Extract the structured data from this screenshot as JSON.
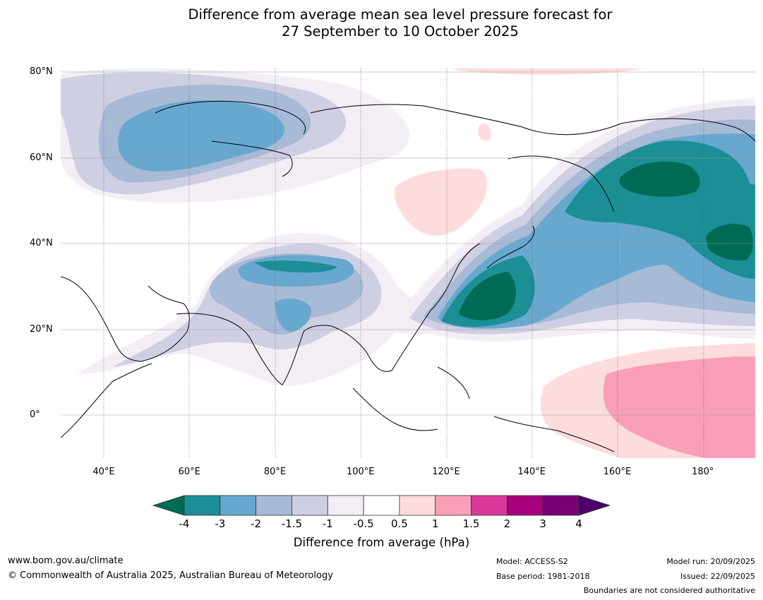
{
  "title_line1": "Difference from average mean sea level pressure forecast for",
  "title_line2": "27 September to 10 October 2025",
  "map": {
    "lat_labels": [
      {
        "text": "80°N",
        "lat": 80
      },
      {
        "text": "60°N",
        "lat": 60
      },
      {
        "text": "40°N",
        "lat": 40
      },
      {
        "text": "20°N",
        "lat": 20
      },
      {
        "text": "0°",
        "lat": 0
      }
    ],
    "lon_labels": [
      {
        "text": "40°E",
        "lon": 40
      },
      {
        "text": "60°E",
        "lon": 60
      },
      {
        "text": "80°E",
        "lon": 80
      },
      {
        "text": "100°E",
        "lon": 100
      },
      {
        "text": "120°E",
        "lon": 120
      },
      {
        "text": "140°E",
        "lon": 140
      },
      {
        "text": "160°E",
        "lon": 160
      },
      {
        "text": "180°",
        "lon": 180
      }
    ],
    "extent": {
      "lon_min": 30,
      "lon_max": 192,
      "lat_min": -10,
      "lat_max": 81
    }
  },
  "colorbar": {
    "title": "Difference from average (hPa)",
    "ticks": [
      "-4",
      "-3",
      "-2",
      "-1.5",
      "-1",
      "-0.5",
      "0.5",
      "1",
      "1.5",
      "2",
      "3",
      "4"
    ],
    "colors": [
      "#1b8f95",
      "#68a8cf",
      "#a7bad6",
      "#cfcfe3",
      "#f3eef5",
      "#ffffff",
      "#fcdcdc",
      "#f99fb8",
      "#d9379a",
      "#a6007e",
      "#7a0077"
    ],
    "under_color": "#006b55",
    "over_color": "#4d006b"
  },
  "footer": {
    "url": "www.bom.gov.au/climate",
    "copyright": "© Commonwealth of Australia 2025, Australian Bureau of Meteorology",
    "model": "Model: ACCESS-S2",
    "base_period": "Base period: 1981-2018",
    "model_run": "Model run: 20/09/2025",
    "issued": "Issued: 22/09/2025",
    "disclaimer": "Boundaries are not considered authoritative"
  }
}
